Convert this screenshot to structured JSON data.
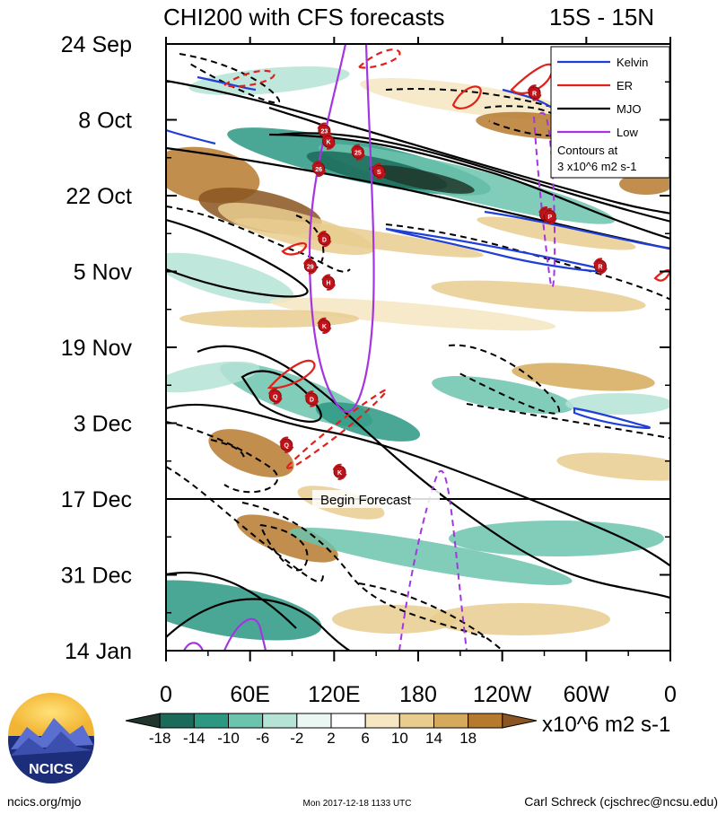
{
  "chart_data": {
    "type": "heatmap",
    "title": "CHI200 with CFS forecasts",
    "region": "15S - 15N",
    "y_ticks": [
      "24 Sep",
      "8 Oct",
      "22 Oct",
      "5 Nov",
      "19 Nov",
      "3 Dec",
      "17 Dec",
      "31 Dec",
      "14 Jan"
    ],
    "x_ticks": [
      "0",
      "60E",
      "120E",
      "180",
      "120W",
      "60W",
      "0"
    ],
    "forecast_label": "Begin Forecast",
    "legend": {
      "entries": [
        {
          "name": "Kelvin",
          "color": "#1f3fd6"
        },
        {
          "name": "ER",
          "color": "#e0201b"
        },
        {
          "name": "MJO",
          "color": "#000000"
        },
        {
          "name": "Low",
          "color": "#a435e0"
        }
      ],
      "note_line1": "Contours at",
      "note_line2": "3 x10^6 m2 s-1"
    },
    "colorbar": {
      "labels": [
        "-18",
        "-14",
        "-10",
        "-6",
        "-2",
        "2",
        "6",
        "10",
        "14",
        "18"
      ],
      "colors": [
        "#20362c",
        "#1c6a5a",
        "#2c9882",
        "#6cc3ae",
        "#b5e3d6",
        "#eaf7f2",
        "#ffffff",
        "#f6e6c2",
        "#e9cd8f",
        "#d6aa5c",
        "#b67a2f",
        "#8a5520"
      ],
      "units": "x10^6 m2 s-1"
    },
    "cyclone_markers": [
      {
        "label": "23",
        "day": 16,
        "lon": 113
      },
      {
        "label": "K",
        "day": 18,
        "lon": 116
      },
      {
        "label": "25",
        "day": 20,
        "lon": 137
      },
      {
        "label": "26",
        "day": 23,
        "lon": 109
      },
      {
        "label": "S",
        "day": 23.5,
        "lon": 152
      },
      {
        "label": "S",
        "day": 31.5,
        "lon": 271
      },
      {
        "label": "P",
        "day": 31.8,
        "lon": 274
      },
      {
        "label": "D",
        "day": 36,
        "lon": 113
      },
      {
        "label": "R",
        "day": 9,
        "lon": 263
      },
      {
        "label": "29",
        "day": 41,
        "lon": 103
      },
      {
        "label": "R",
        "day": 41,
        "lon": 310
      },
      {
        "label": "H",
        "day": 44,
        "lon": 116
      },
      {
        "label": "K",
        "day": 52,
        "lon": 113
      },
      {
        "label": "Q",
        "day": 65,
        "lon": 78
      },
      {
        "label": "D",
        "day": 65.5,
        "lon": 104
      },
      {
        "label": "Q",
        "day": 74,
        "lon": 86
      },
      {
        "label": "K",
        "day": 79,
        "lon": 124
      }
    ]
  },
  "footer": {
    "logo_text": "NCICS",
    "left": "ncics.org/mjo",
    "center": "Mon 2017-12-18 1133 UTC",
    "right": "Carl Schreck (cjschrec@ncsu.edu)"
  }
}
